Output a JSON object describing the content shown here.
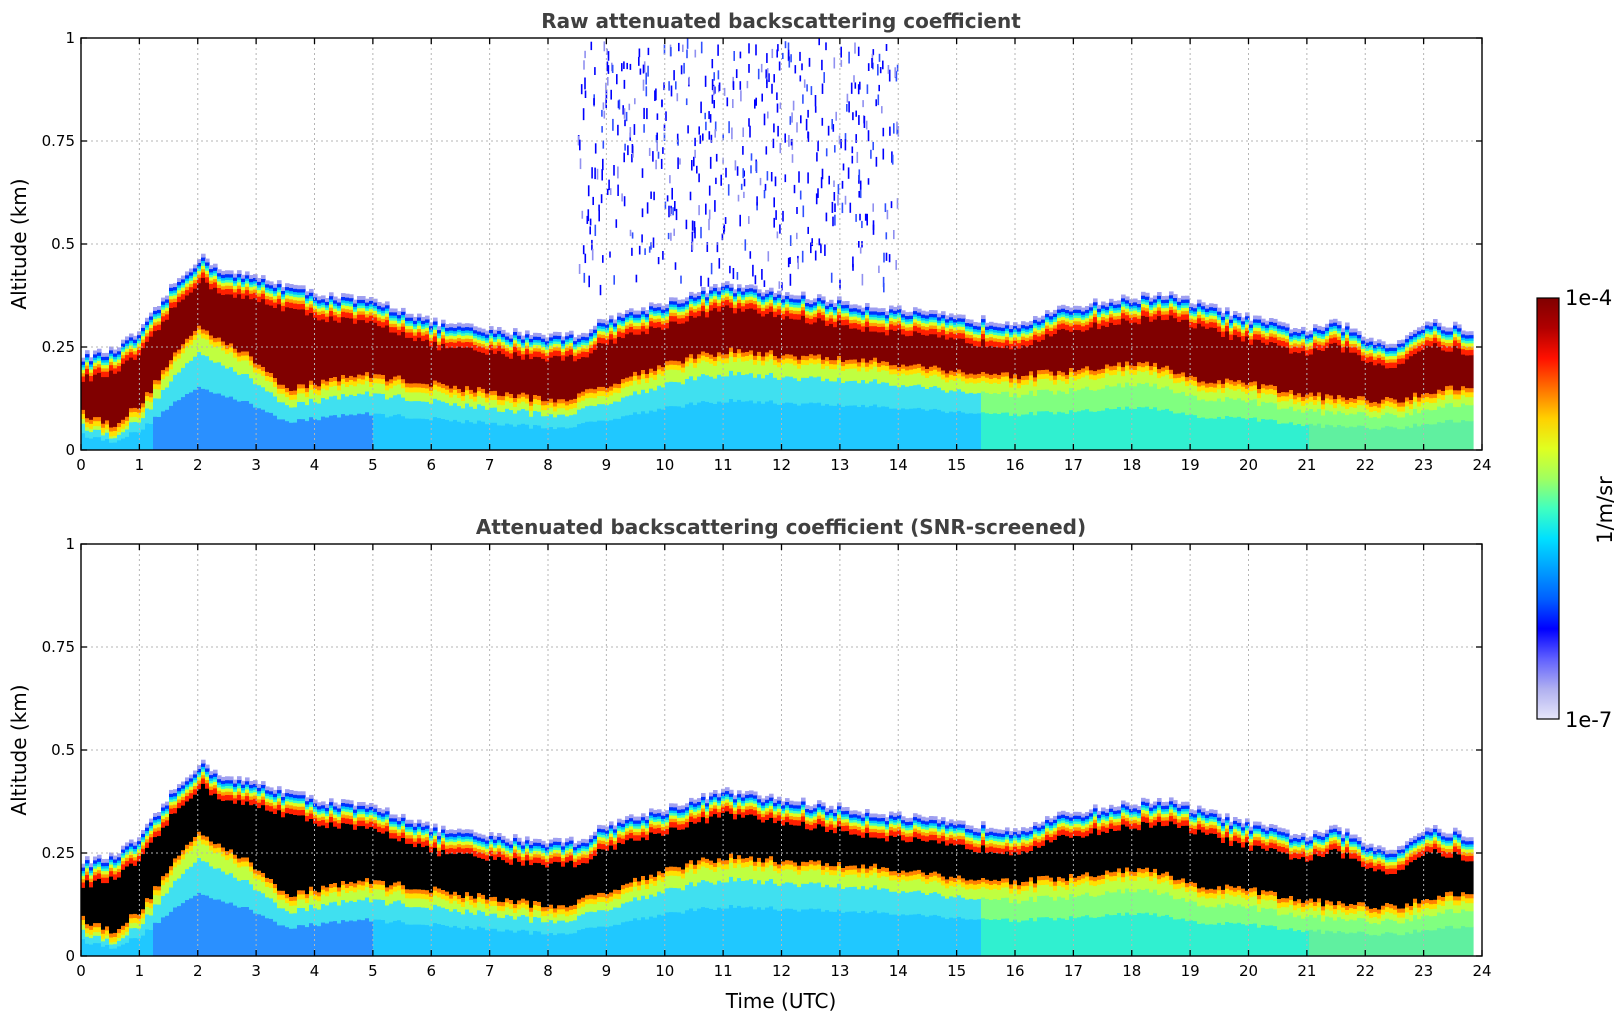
{
  "chart_data": [
    {
      "type": "heatmap",
      "title": "Raw attenuated backscattering coefficient",
      "xlabel": "",
      "ylabel": "Altitude (km)",
      "xlim": [
        0,
        24
      ],
      "ylim": [
        0,
        1
      ],
      "xticks": [
        "0",
        "1",
        "2",
        "3",
        "4",
        "5",
        "6",
        "7",
        "8",
        "9",
        "10",
        "11",
        "12",
        "13",
        "14",
        "15",
        "16",
        "17",
        "18",
        "19",
        "20",
        "21",
        "22",
        "23",
        "24"
      ],
      "yticks": [
        "0",
        "0.25",
        "0.5",
        "0.75",
        "1"
      ],
      "grid": true,
      "profile": {
        "time_utc": [
          0,
          0.5,
          1,
          1.5,
          2,
          2.5,
          3,
          3.5,
          4,
          4.5,
          5,
          5.5,
          6,
          7,
          8,
          8.5,
          9,
          10,
          11,
          12,
          13,
          14,
          15,
          16,
          17,
          18,
          18.5,
          19,
          20,
          21,
          21.5,
          22,
          22.5,
          23,
          23.5,
          23.8
        ],
        "layer_top_km": [
          0.22,
          0.23,
          0.28,
          0.38,
          0.46,
          0.42,
          0.41,
          0.39,
          0.37,
          0.36,
          0.35,
          0.33,
          0.3,
          0.28,
          0.27,
          0.27,
          0.31,
          0.35,
          0.39,
          0.37,
          0.35,
          0.33,
          0.31,
          0.3,
          0.34,
          0.36,
          0.37,
          0.35,
          0.31,
          0.28,
          0.3,
          0.26,
          0.25,
          0.3,
          0.29,
          0.28
        ],
        "layer_base_km": [
          0.07,
          0.04,
          0.09,
          0.2,
          0.28,
          0.24,
          0.19,
          0.13,
          0.14,
          0.16,
          0.16,
          0.15,
          0.14,
          0.12,
          0.1,
          0.11,
          0.14,
          0.19,
          0.22,
          0.21,
          0.2,
          0.19,
          0.17,
          0.16,
          0.17,
          0.19,
          0.18,
          0.15,
          0.14,
          0.11,
          0.11,
          0.1,
          0.1,
          0.12,
          0.13,
          0.13
        ]
      },
      "noise_region": {
        "time_utc": [
          8.5,
          14
        ],
        "altitude_km": [
          0.4,
          1
        ]
      },
      "screened": false
    },
    {
      "type": "heatmap",
      "title": "Attenuated backscattering coefficient (SNR-screened)",
      "xlabel": "Time (UTC)",
      "ylabel": "Altitude (km)",
      "xlim": [
        0,
        24
      ],
      "ylim": [
        0,
        1
      ],
      "xticks": [
        "0",
        "1",
        "2",
        "3",
        "4",
        "5",
        "6",
        "7",
        "8",
        "9",
        "10",
        "11",
        "12",
        "13",
        "14",
        "15",
        "16",
        "17",
        "18",
        "19",
        "20",
        "21",
        "22",
        "23",
        "24"
      ],
      "yticks": [
        "0",
        "0.25",
        "0.5",
        "0.75",
        "1"
      ],
      "grid": true,
      "profile": {
        "time_utc": [
          0,
          0.5,
          1,
          1.5,
          2,
          2.5,
          3,
          3.5,
          4,
          4.5,
          5,
          5.5,
          6,
          7,
          8,
          8.5,
          9,
          10,
          11,
          12,
          13,
          14,
          15,
          16,
          17,
          18,
          18.5,
          19,
          20,
          21,
          21.5,
          22,
          22.5,
          23,
          23.5,
          23.8
        ],
        "layer_top_km": [
          0.22,
          0.23,
          0.28,
          0.38,
          0.46,
          0.42,
          0.41,
          0.39,
          0.37,
          0.36,
          0.35,
          0.33,
          0.3,
          0.28,
          0.27,
          0.27,
          0.31,
          0.35,
          0.39,
          0.37,
          0.35,
          0.33,
          0.31,
          0.3,
          0.34,
          0.36,
          0.37,
          0.35,
          0.31,
          0.28,
          0.3,
          0.26,
          0.25,
          0.3,
          0.29,
          0.28
        ],
        "layer_base_km": [
          0.07,
          0.04,
          0.09,
          0.2,
          0.28,
          0.24,
          0.19,
          0.13,
          0.14,
          0.16,
          0.16,
          0.15,
          0.14,
          0.12,
          0.1,
          0.11,
          0.14,
          0.19,
          0.22,
          0.21,
          0.2,
          0.19,
          0.17,
          0.16,
          0.17,
          0.19,
          0.18,
          0.15,
          0.14,
          0.11,
          0.11,
          0.1,
          0.1,
          0.12,
          0.13,
          0.13
        ]
      },
      "saturated_color": "#000000",
      "screened": true
    }
  ],
  "colorbar": {
    "label": "1/m/sr",
    "max_label": "1e-4",
    "min_label": "1e-7",
    "scale": "log",
    "range": [
      1e-07,
      0.0001
    ],
    "colormap": [
      "#e6e6fa",
      "#b0b0f0",
      "#6060ff",
      "#0000ff",
      "#0060ff",
      "#00a0ff",
      "#00e0ff",
      "#40ffc0",
      "#a0ff60",
      "#e0ff20",
      "#ffd000",
      "#ff7000",
      "#ff1000",
      "#b00000",
      "#800000"
    ]
  }
}
